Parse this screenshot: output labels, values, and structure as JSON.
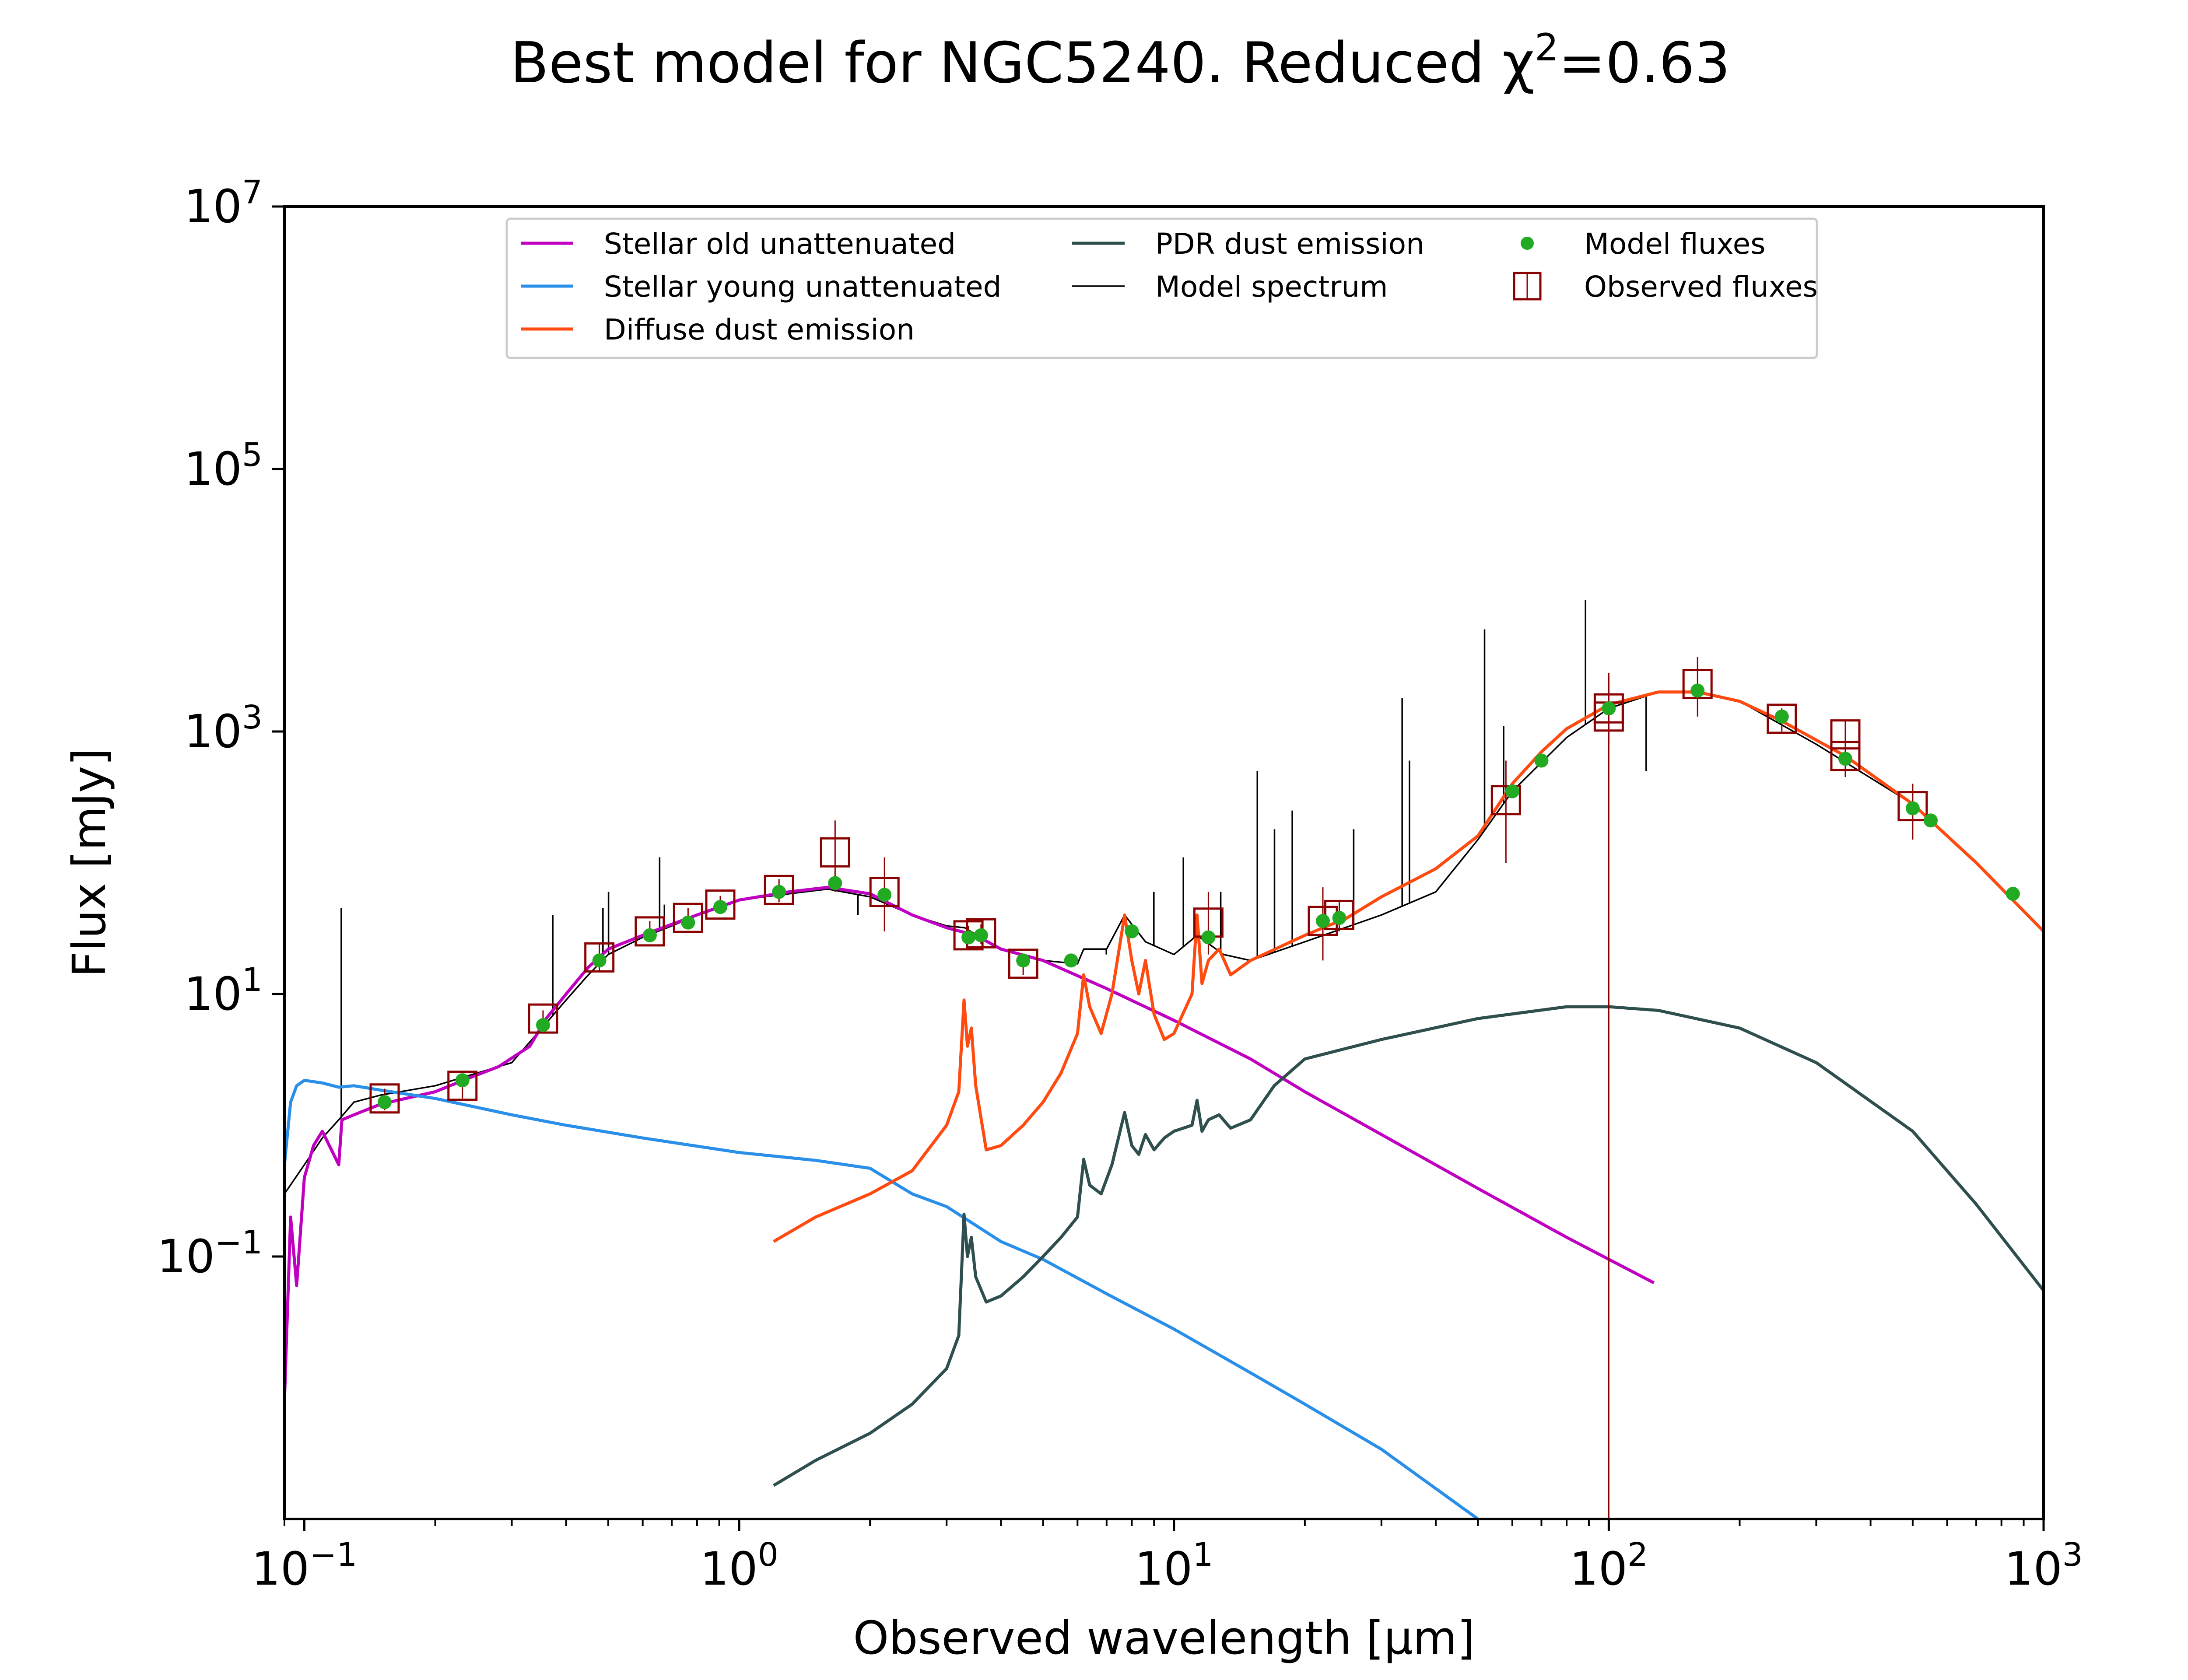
{
  "chart_data": {
    "type": "line",
    "title": "Best model for NGC5240. Reduced χ²=0.63",
    "xlabel": "Observed wavelength [μm]",
    "ylabel": "Flux [mJy]",
    "xscale": "log",
    "yscale": "log",
    "xlim": [
      0.09,
      1000
    ],
    "ylim": [
      0.001,
      10000000
    ],
    "grid": false,
    "legend_position": "top",
    "x_ticks": [
      {
        "value": 0.1,
        "base": "10",
        "exp": "−1"
      },
      {
        "value": 1,
        "base": "10",
        "exp": "0"
      },
      {
        "value": 10,
        "base": "10",
        "exp": "1"
      },
      {
        "value": 100,
        "base": "10",
        "exp": "2"
      },
      {
        "value": 1000,
        "base": "10",
        "exp": "3"
      }
    ],
    "y_ticks": [
      {
        "value": 0.1,
        "base": "10",
        "exp": "−1"
      },
      {
        "value": 10,
        "base": "10",
        "exp": "1"
      },
      {
        "value": 1000,
        "base": "10",
        "exp": "3"
      },
      {
        "value": 100000,
        "base": "10",
        "exp": "5"
      },
      {
        "value": 10000000,
        "base": "10",
        "exp": "7"
      }
    ],
    "series": [
      {
        "name": "Stellar old unattenuated",
        "color": "#c000c0",
        "points": [
          [
            0.09,
            0.008
          ],
          [
            0.093,
            0.2
          ],
          [
            0.096,
            0.06
          ],
          [
            0.1,
            0.4
          ],
          [
            0.105,
            0.7
          ],
          [
            0.11,
            0.9
          ],
          [
            0.12,
            0.5
          ],
          [
            0.122,
            1.1
          ],
          [
            0.13,
            1.2
          ],
          [
            0.15,
            1.45
          ],
          [
            0.2,
            1.8
          ],
          [
            0.24,
            2.3
          ],
          [
            0.28,
            2.8
          ],
          [
            0.33,
            4.0
          ],
          [
            0.36,
            6.5
          ],
          [
            0.4,
            10
          ],
          [
            0.45,
            16
          ],
          [
            0.5,
            22
          ],
          [
            0.6,
            28
          ],
          [
            0.7,
            34
          ],
          [
            0.8,
            40
          ],
          [
            1.0,
            52
          ],
          [
            1.3,
            60
          ],
          [
            1.6,
            65
          ],
          [
            2.0,
            58
          ],
          [
            2.5,
            40
          ],
          [
            3.0,
            32
          ],
          [
            3.5,
            28
          ],
          [
            4.0,
            22
          ],
          [
            5.0,
            18
          ],
          [
            7.0,
            11
          ],
          [
            10,
            6.3
          ],
          [
            15,
            3.2
          ],
          [
            20,
            1.8
          ],
          [
            30,
            0.85
          ],
          [
            50,
            0.33
          ],
          [
            80,
            0.14
          ],
          [
            127,
            0.063
          ]
        ]
      },
      {
        "name": "Stellar young unattenuated",
        "color": "#2a8fe8",
        "points": [
          [
            0.09,
            0.5
          ],
          [
            0.093,
            1.5
          ],
          [
            0.096,
            2.0
          ],
          [
            0.1,
            2.2
          ],
          [
            0.11,
            2.1
          ],
          [
            0.12,
            1.95
          ],
          [
            0.13,
            2.0
          ],
          [
            0.15,
            1.85
          ],
          [
            0.2,
            1.6
          ],
          [
            0.3,
            1.2
          ],
          [
            0.4,
            1.0
          ],
          [
            0.6,
            0.8
          ],
          [
            1.0,
            0.62
          ],
          [
            1.5,
            0.54
          ],
          [
            2.0,
            0.47
          ],
          [
            2.5,
            0.3
          ],
          [
            3.0,
            0.24
          ],
          [
            4.0,
            0.13
          ],
          [
            5.0,
            0.095
          ],
          [
            7.0,
            0.052
          ],
          [
            10,
            0.028
          ],
          [
            15,
            0.013
          ],
          [
            20,
            0.0075
          ],
          [
            30,
            0.0034
          ],
          [
            50,
            0.001
          ]
        ]
      },
      {
        "name": "Diffuse dust emission",
        "color": "#ff4a10",
        "points": [
          [
            1.2,
            0.13
          ],
          [
            1.5,
            0.2
          ],
          [
            2.0,
            0.3
          ],
          [
            2.5,
            0.45
          ],
          [
            3.0,
            1.0
          ],
          [
            3.2,
            1.8
          ],
          [
            3.29,
            9
          ],
          [
            3.35,
            4
          ],
          [
            3.42,
            5.5
          ],
          [
            3.5,
            2
          ],
          [
            3.7,
            0.65
          ],
          [
            4.0,
            0.7
          ],
          [
            4.5,
            1.0
          ],
          [
            5.0,
            1.5
          ],
          [
            5.5,
            2.5
          ],
          [
            6.0,
            5
          ],
          [
            6.2,
            14
          ],
          [
            6.4,
            8
          ],
          [
            6.8,
            5
          ],
          [
            7.2,
            10
          ],
          [
            7.7,
            40
          ],
          [
            8.0,
            18
          ],
          [
            8.3,
            10
          ],
          [
            8.6,
            18
          ],
          [
            9.0,
            7
          ],
          [
            9.5,
            4.5
          ],
          [
            10.0,
            5
          ],
          [
            11.0,
            10
          ],
          [
            11.3,
            40
          ],
          [
            11.6,
            12
          ],
          [
            12.0,
            18
          ],
          [
            12.7,
            22
          ],
          [
            13.5,
            14
          ],
          [
            15,
            18
          ],
          [
            20,
            28
          ],
          [
            25,
            38
          ],
          [
            30,
            55
          ],
          [
            40,
            90
          ],
          [
            50,
            160
          ],
          [
            60,
            400
          ],
          [
            70,
            700
          ],
          [
            80,
            1050
          ],
          [
            100,
            1600
          ],
          [
            130,
            2000
          ],
          [
            160,
            2000
          ],
          [
            200,
            1700
          ],
          [
            250,
            1200
          ],
          [
            350,
            650
          ],
          [
            500,
            280
          ],
          [
            700,
            100
          ],
          [
            1000,
            30
          ]
        ]
      },
      {
        "name": "PDR dust emission",
        "color": "#2f4f4f",
        "points": [
          [
            1.2,
            0.0018
          ],
          [
            1.5,
            0.0028
          ],
          [
            2.0,
            0.0045
          ],
          [
            2.5,
            0.0075
          ],
          [
            3.0,
            0.014
          ],
          [
            3.2,
            0.025
          ],
          [
            3.29,
            0.21
          ],
          [
            3.35,
            0.1
          ],
          [
            3.42,
            0.14
          ],
          [
            3.5,
            0.07
          ],
          [
            3.7,
            0.045
          ],
          [
            4.0,
            0.05
          ],
          [
            4.5,
            0.07
          ],
          [
            5.0,
            0.1
          ],
          [
            5.5,
            0.14
          ],
          [
            6.0,
            0.2
          ],
          [
            6.2,
            0.55
          ],
          [
            6.4,
            0.35
          ],
          [
            6.8,
            0.3
          ],
          [
            7.2,
            0.5
          ],
          [
            7.7,
            1.25
          ],
          [
            8.0,
            0.7
          ],
          [
            8.3,
            0.6
          ],
          [
            8.6,
            0.85
          ],
          [
            9.0,
            0.65
          ],
          [
            9.5,
            0.8
          ],
          [
            10.0,
            0.9
          ],
          [
            11.0,
            1.0
          ],
          [
            11.3,
            1.55
          ],
          [
            11.6,
            0.9
          ],
          [
            12.0,
            1.1
          ],
          [
            12.7,
            1.2
          ],
          [
            13.5,
            0.95
          ],
          [
            15,
            1.1
          ],
          [
            17,
            2.0
          ],
          [
            20,
            3.2
          ],
          [
            30,
            4.5
          ],
          [
            50,
            6.5
          ],
          [
            80,
            8
          ],
          [
            100,
            8
          ],
          [
            130,
            7.5
          ],
          [
            200,
            5.5
          ],
          [
            300,
            3
          ],
          [
            500,
            0.9
          ],
          [
            700,
            0.25
          ],
          [
            1000,
            0.055
          ]
        ]
      },
      {
        "name": "Model spectrum",
        "color": "#000000",
        "points": [
          [
            0.09,
            0.3
          ],
          [
            0.1,
            0.5
          ],
          [
            0.11,
            0.8
          ],
          [
            0.12,
            1.1
          ],
          [
            0.13,
            1.5
          ],
          [
            0.15,
            1.7
          ],
          [
            0.2,
            2.0
          ],
          [
            0.25,
            2.5
          ],
          [
            0.3,
            3
          ],
          [
            0.36,
            6
          ],
          [
            0.4,
            9
          ],
          [
            0.45,
            14
          ],
          [
            0.5,
            20
          ],
          [
            0.6,
            27
          ],
          [
            0.7,
            33
          ],
          [
            0.8,
            40
          ],
          [
            1.0,
            52
          ],
          [
            1.3,
            58
          ],
          [
            1.6,
            63
          ],
          [
            2.0,
            55
          ],
          [
            2.5,
            40
          ],
          [
            3.0,
            33
          ],
          [
            3.3,
            32
          ],
          [
            4.0,
            22
          ],
          [
            5.0,
            18
          ],
          [
            6.0,
            17
          ],
          [
            6.2,
            22
          ],
          [
            7.0,
            22
          ],
          [
            7.7,
            40
          ],
          [
            8.6,
            25
          ],
          [
            10,
            20
          ],
          [
            11.3,
            28
          ],
          [
            13,
            20
          ],
          [
            15,
            18
          ],
          [
            20,
            25
          ],
          [
            30,
            40
          ],
          [
            40,
            60
          ],
          [
            50,
            150
          ],
          [
            60,
            350
          ],
          [
            80,
            900
          ],
          [
            100,
            1500
          ],
          [
            130,
            2000
          ],
          [
            160,
            2000
          ],
          [
            200,
            1700
          ],
          [
            300,
            800
          ],
          [
            500,
            280
          ],
          [
            700,
            100
          ],
          [
            1000,
            30
          ]
        ],
        "emission_lines": [
          [
            0.1216,
            45
          ],
          [
            0.3727,
            40
          ],
          [
            0.4861,
            45
          ],
          [
            0.5007,
            60
          ],
          [
            0.6563,
            110
          ],
          [
            0.6731,
            48
          ],
          [
            1.876,
            40
          ],
          [
            6.99,
            20
          ],
          [
            8.99,
            60
          ],
          [
            10.51,
            110
          ],
          [
            12.81,
            60
          ],
          [
            15.55,
            500
          ],
          [
            17.03,
            180
          ],
          [
            18.71,
            250
          ],
          [
            25.9,
            180
          ],
          [
            33.48,
            1800
          ],
          [
            34.8,
            600
          ],
          [
            51.8,
            6000
          ],
          [
            57.3,
            1100
          ],
          [
            88.4,
            10000
          ],
          [
            121.9,
            500
          ]
        ]
      }
    ],
    "model_fluxes": {
      "name": "Model fluxes",
      "color": "#22aa22",
      "points": [
        [
          0.153,
          1.5
        ],
        [
          0.231,
          2.2
        ],
        [
          0.354,
          5.8
        ],
        [
          0.477,
          18
        ],
        [
          0.623,
          28
        ],
        [
          0.763,
          35
        ],
        [
          0.905,
          46
        ],
        [
          1.235,
          60
        ],
        [
          1.662,
          70
        ],
        [
          2.159,
          57
        ],
        [
          3.368,
          27
        ],
        [
          3.6,
          28
        ],
        [
          4.5,
          18
        ],
        [
          5.8,
          18
        ],
        [
          8.0,
          30
        ],
        [
          12,
          27
        ],
        [
          22,
          36
        ],
        [
          24,
          38
        ],
        [
          60,
          350
        ],
        [
          70,
          600
        ],
        [
          100,
          1500
        ],
        [
          160,
          2050
        ],
        [
          250,
          1300
        ],
        [
          350,
          620
        ],
        [
          500,
          260
        ],
        [
          550,
          210
        ],
        [
          850,
          58
        ]
      ]
    },
    "observed_fluxes": {
      "name": "Observed fluxes",
      "color": "#8b0000",
      "points": [
        {
          "x": 0.153,
          "y": 1.6,
          "ylo": 1.3,
          "yhi": 1.9
        },
        {
          "x": 0.231,
          "y": 2.0,
          "ylo": 1.6,
          "yhi": 2.4
        },
        {
          "x": 0.354,
          "y": 6.5,
          "ylo": 5.5,
          "yhi": 7.5
        },
        {
          "x": 0.477,
          "y": 19,
          "ylo": 15,
          "yhi": 24
        },
        {
          "x": 0.623,
          "y": 30,
          "ylo": 25,
          "yhi": 36
        },
        {
          "x": 0.763,
          "y": 38,
          "ylo": 32,
          "yhi": 45
        },
        {
          "x": 0.905,
          "y": 48,
          "ylo": 41,
          "yhi": 56
        },
        {
          "x": 1.235,
          "y": 62,
          "ylo": 50,
          "yhi": 75
        },
        {
          "x": 1.662,
          "y": 120,
          "ylo": 60,
          "yhi": 210
        },
        {
          "x": 2.159,
          "y": 60,
          "ylo": 30,
          "yhi": 110
        },
        {
          "x": 3.368,
          "y": 28,
          "ylo": 24,
          "yhi": 33
        },
        {
          "x": 3.6,
          "y": 29,
          "ylo": 24,
          "yhi": 34
        },
        {
          "x": 4.5,
          "y": 17,
          "ylo": 14,
          "yhi": 20
        },
        {
          "x": 12,
          "y": 35,
          "ylo": 20,
          "yhi": 60
        },
        {
          "x": 22,
          "y": 36,
          "ylo": 18,
          "yhi": 65
        },
        {
          "x": 24,
          "y": 40,
          "ylo": 30,
          "yhi": 52
        },
        {
          "x": 58,
          "y": 300,
          "ylo": 100,
          "yhi": 600
        },
        {
          "x": 100,
          "y": 1500,
          "ylo": 800,
          "yhi": 2800
        },
        {
          "x": 100,
          "y": 1300,
          "ylo": 0.001,
          "yhi": 2600
        },
        {
          "x": 160,
          "y": 2300,
          "ylo": 1300,
          "yhi": 3700
        },
        {
          "x": 250,
          "y": 1250,
          "ylo": 1000,
          "yhi": 1500
        },
        {
          "x": 350,
          "y": 950,
          "ylo": 700,
          "yhi": 1200
        },
        {
          "x": 350,
          "y": 650,
          "ylo": 450,
          "yhi": 850
        },
        {
          "x": 500,
          "y": 270,
          "ylo": 150,
          "yhi": 400
        }
      ]
    }
  }
}
